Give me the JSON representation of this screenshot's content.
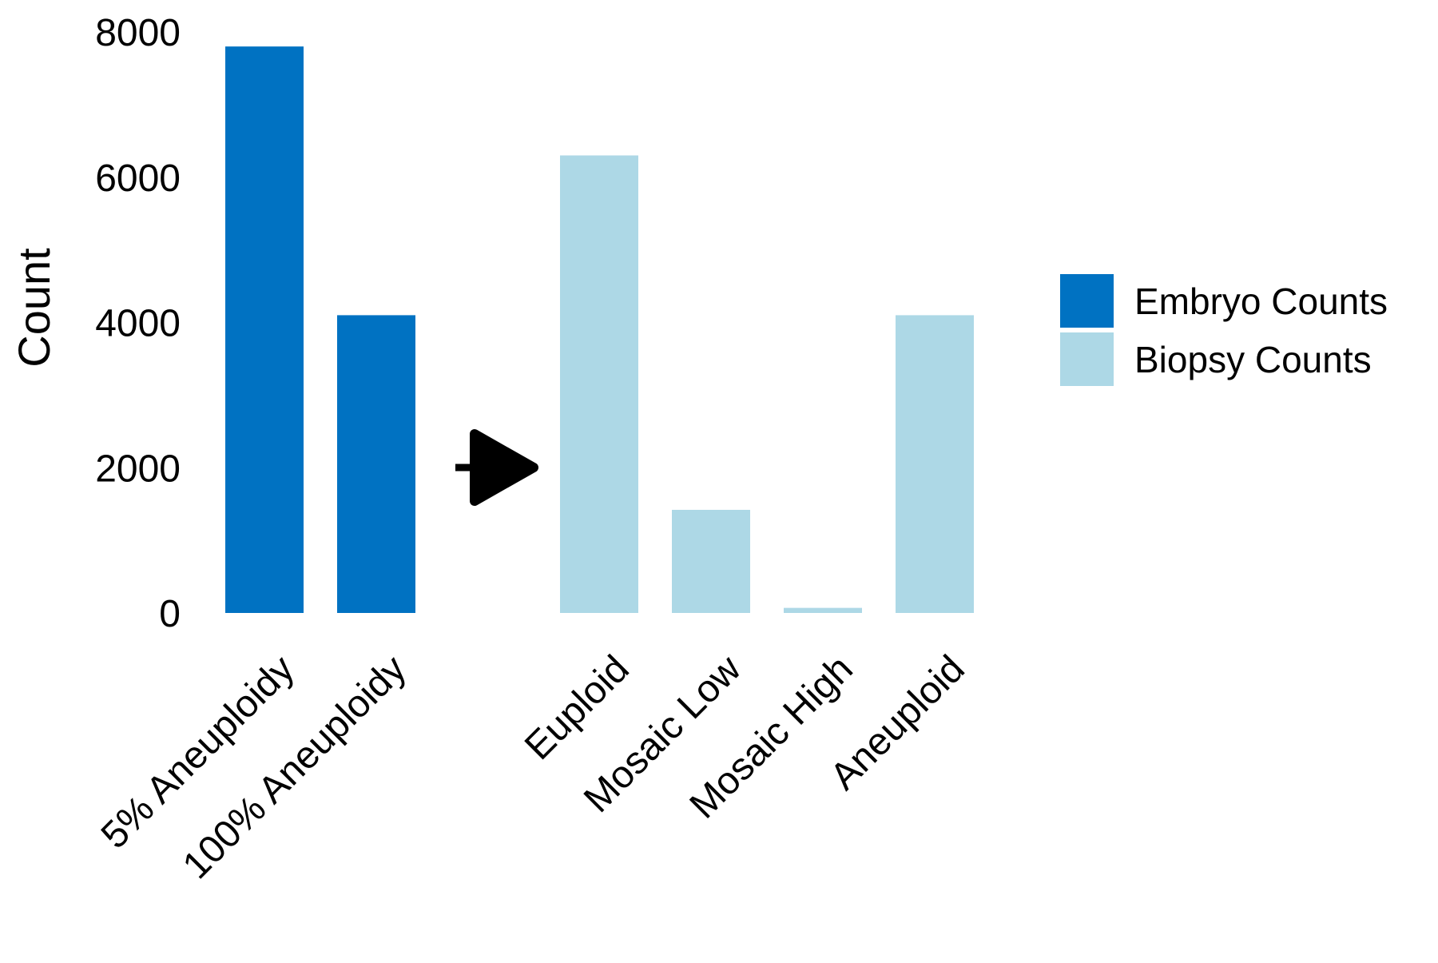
{
  "chart_data": {
    "type": "bar",
    "ylabel": "Count",
    "ylim": [
      0,
      8000
    ],
    "yticks": [
      0,
      2000,
      4000,
      6000,
      8000
    ],
    "grid": false,
    "legend_position": "right",
    "categories": [
      "5% Aneuploidy",
      "100% Aneuploidy",
      "Euploid",
      "Mosaic Low",
      "Mosaic High",
      "Aneuploid"
    ],
    "series": [
      {
        "name": "Embryo Counts",
        "color": "#0072c2",
        "points": [
          {
            "category": "5% Aneuploidy",
            "value": 7800
          },
          {
            "category": "100% Aneuploidy",
            "value": 4100
          }
        ]
      },
      {
        "name": "Biopsy Counts",
        "color": "#add8e6",
        "points": [
          {
            "category": "Euploid",
            "value": 6300
          },
          {
            "category": "Mosaic Low",
            "value": 1420
          },
          {
            "category": "Mosaic High",
            "value": 70
          },
          {
            "category": "Aneuploid",
            "value": 4100
          }
        ]
      }
    ],
    "annotations": [
      {
        "kind": "arrow",
        "icon": "right-arrow-icon",
        "between": [
          "100% Aneuploidy",
          "Euploid"
        ],
        "y_value": 2000
      }
    ]
  }
}
